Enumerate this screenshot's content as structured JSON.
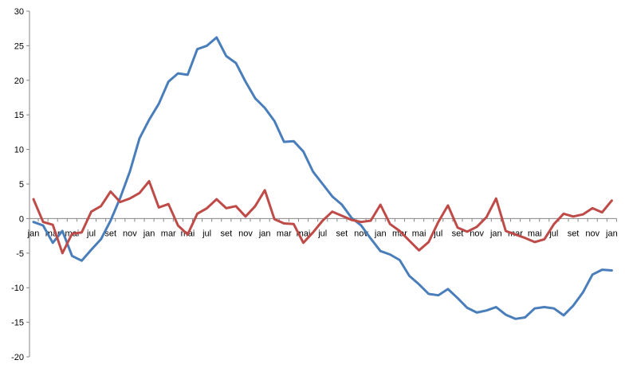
{
  "chart_data": {
    "type": "line",
    "title": "",
    "xlabel": "",
    "ylabel": "",
    "ylim": [
      -20,
      30
    ],
    "yticks": [
      -20,
      -15,
      -10,
      -5,
      0,
      5,
      10,
      15,
      20,
      25,
      30
    ],
    "grid": false,
    "legend": "none",
    "x_tick_labels": [
      "jan",
      "mar",
      "mai",
      "jul",
      "set",
      "nov",
      "jan",
      "mar",
      "mai",
      "jul",
      "set",
      "nov",
      "jan",
      "mar",
      "mai",
      "jul",
      "set",
      "nov",
      "jan",
      "mar",
      "mai",
      "jul",
      "set",
      "nov",
      "jan",
      "mar",
      "mai",
      "jul",
      "set",
      "nov",
      "jan"
    ],
    "series": [
      {
        "color": "#4a7ebb",
        "values": [
          -0.5,
          -1.0,
          -3.5,
          -1.8,
          -5.4,
          -6.1,
          -4.5,
          -3.0,
          -0.3,
          3.0,
          6.8,
          11.6,
          14.3,
          16.6,
          19.8,
          21.0,
          20.8,
          24.5,
          25.0,
          26.2,
          23.5,
          22.5,
          19.8,
          17.4,
          16.0,
          14.1,
          11.1,
          11.2,
          9.7,
          6.8,
          5.0,
          3.2,
          2.0,
          0.1,
          -1.0,
          -2.9,
          -4.7,
          -5.2,
          -6.0,
          -8.3,
          -9.5,
          -10.9,
          -11.1,
          -10.2,
          -11.5,
          -12.9,
          -13.6,
          -13.3,
          -12.8,
          -13.9,
          -14.5,
          -14.3,
          -13.0,
          -12.8,
          -13.0,
          -14.0,
          -12.6,
          -10.7,
          -8.1,
          -7.4,
          -7.5
        ]
      },
      {
        "color": "#be4b48",
        "values": [
          2.8,
          -0.5,
          -0.9,
          -5.0,
          -2.2,
          -2.0,
          1.0,
          1.8,
          3.9,
          2.4,
          2.9,
          3.7,
          5.4,
          1.6,
          2.1,
          -1.0,
          -2.3,
          0.7,
          1.5,
          2.8,
          1.5,
          1.8,
          0.3,
          1.8,
          4.1,
          -0.1,
          -0.7,
          -0.8,
          -3.5,
          -2.0,
          -0.3,
          1.0,
          0.4,
          -0.2,
          -0.5,
          -0.3,
          2.0,
          -0.8,
          -1.8,
          -3.2,
          -4.6,
          -3.4,
          -0.5,
          1.9,
          -1.3,
          -1.9,
          -1.2,
          0.2,
          2.9,
          -1.8,
          -2.3,
          -2.8,
          -3.4,
          -3.0,
          -0.8,
          0.7,
          0.3,
          0.6,
          1.5,
          0.9,
          2.6
        ]
      }
    ]
  }
}
